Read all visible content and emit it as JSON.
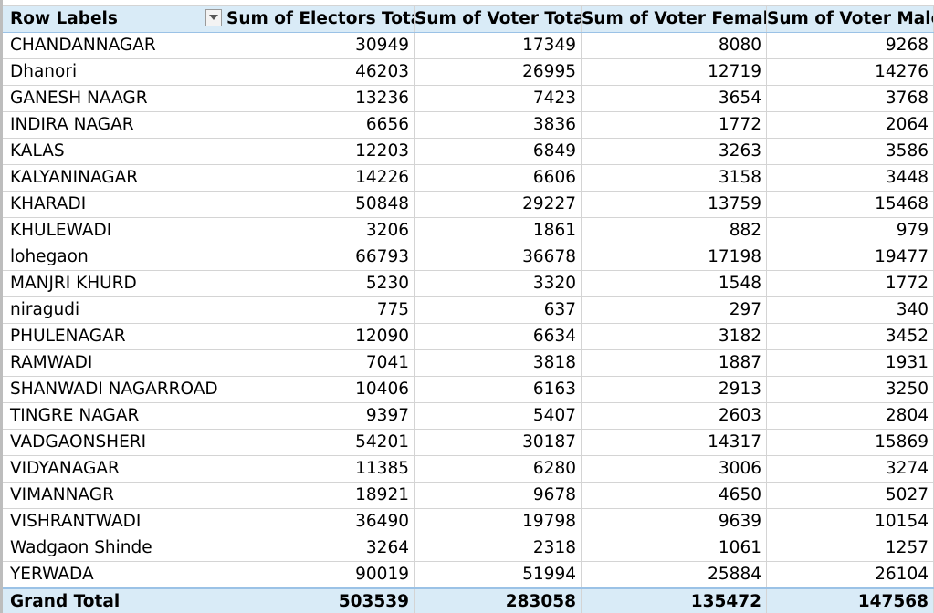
{
  "pivot": {
    "headers": {
      "row_labels": "Row Labels",
      "electors_total": "Sum of Electors Total",
      "voter_total": "Sum of Voter Total",
      "voter_female": "Sum of Voter Female",
      "voter_male": "Sum of Voter Male"
    },
    "rows": [
      {
        "label": "CHANDANNAGAR",
        "electors": "30949",
        "voters": "17349",
        "female": "8080",
        "male": "9268"
      },
      {
        "label": "Dhanori",
        "electors": "46203",
        "voters": "26995",
        "female": "12719",
        "male": "14276"
      },
      {
        "label": "GANESH NAAGR",
        "electors": "13236",
        "voters": "7423",
        "female": "3654",
        "male": "3768"
      },
      {
        "label": "INDIRA NAGAR",
        "electors": "6656",
        "voters": "3836",
        "female": "1772",
        "male": "2064"
      },
      {
        "label": "KALAS",
        "electors": "12203",
        "voters": "6849",
        "female": "3263",
        "male": "3586"
      },
      {
        "label": "KALYANINAGAR",
        "electors": "14226",
        "voters": "6606",
        "female": "3158",
        "male": "3448"
      },
      {
        "label": "KHARADI",
        "electors": "50848",
        "voters": "29227",
        "female": "13759",
        "male": "15468"
      },
      {
        "label": "KHULEWADI",
        "electors": "3206",
        "voters": "1861",
        "female": "882",
        "male": "979"
      },
      {
        "label": "lohegaon",
        "electors": "66793",
        "voters": "36678",
        "female": "17198",
        "male": "19477"
      },
      {
        "label": "MANJRI KHURD",
        "electors": "5230",
        "voters": "3320",
        "female": "1548",
        "male": "1772"
      },
      {
        "label": "niragudi",
        "electors": "775",
        "voters": "637",
        "female": "297",
        "male": "340"
      },
      {
        "label": "PHULENAGAR",
        "electors": "12090",
        "voters": "6634",
        "female": "3182",
        "male": "3452"
      },
      {
        "label": "RAMWADI",
        "electors": "7041",
        "voters": "3818",
        "female": "1887",
        "male": "1931"
      },
      {
        "label": "SHANWADI NAGARROAD",
        "electors": "10406",
        "voters": "6163",
        "female": "2913",
        "male": "3250"
      },
      {
        "label": "TINGRE NAGAR",
        "electors": "9397",
        "voters": "5407",
        "female": "2603",
        "male": "2804"
      },
      {
        "label": "VADGAONSHERI",
        "electors": "54201",
        "voters": "30187",
        "female": "14317",
        "male": "15869"
      },
      {
        "label": "VIDYANAGAR",
        "electors": "11385",
        "voters": "6280",
        "female": "3006",
        "male": "3274"
      },
      {
        "label": "VIMANNAGR",
        "electors": "18921",
        "voters": "9678",
        "female": "4650",
        "male": "5027"
      },
      {
        "label": "VISHRANTWADI",
        "electors": "36490",
        "voters": "19798",
        "female": "9639",
        "male": "10154"
      },
      {
        "label": "Wadgaon Shinde",
        "electors": "3264",
        "voters": "2318",
        "female": "1061",
        "male": "1257"
      },
      {
        "label": "YERWADA",
        "electors": "90019",
        "voters": "51994",
        "female": "25884",
        "male": "26104"
      }
    ],
    "grand_total": {
      "label": "Grand Total",
      "electors": "503539",
      "voters": "283058",
      "female": "135472",
      "male": "147568"
    }
  },
  "icons": {
    "filter": "dropdown-filter-icon"
  },
  "colors": {
    "header_bg": "#d9ebf7",
    "total_bg": "#d9ebf7",
    "gridline": "#d4d4d4"
  }
}
